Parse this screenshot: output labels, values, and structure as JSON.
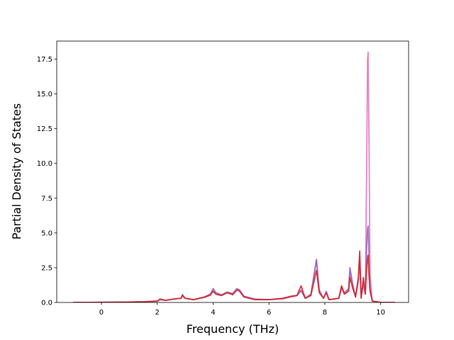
{
  "chart_data": {
    "type": "line",
    "title": "",
    "xlabel": "Frequency (THz)",
    "ylabel": "Partial Density of States",
    "xlim": [
      -1.6,
      11.0
    ],
    "ylim": [
      0,
      18.8
    ],
    "xticks": [
      "0",
      "2",
      "4",
      "6",
      "8",
      "10"
    ],
    "xtick_values": [
      0,
      2,
      4,
      6,
      8,
      10
    ],
    "yticks": [
      "0.0",
      "2.5",
      "5.0",
      "7.5",
      "10.0",
      "12.5",
      "15.0",
      "17.5"
    ],
    "ytick_values": [
      0,
      2.5,
      5,
      7.5,
      10,
      12.5,
      15,
      17.5
    ],
    "grid": false,
    "legend": "none",
    "series": [
      {
        "color": "#e377c2",
        "x": [
          -1.0,
          0.5,
          1.0,
          1.5,
          2.0,
          2.1,
          2.3,
          2.6,
          2.85,
          2.9,
          3.0,
          3.3,
          3.7,
          3.9,
          4.0,
          4.1,
          4.3,
          4.5,
          4.7,
          4.85,
          4.95,
          5.1,
          5.5,
          6.0,
          6.5,
          6.8,
          7.0,
          7.15,
          7.3,
          7.5,
          7.7,
          7.8,
          7.95,
          8.05,
          8.15,
          8.5,
          8.6,
          8.7,
          8.85,
          8.9,
          9.0,
          9.1,
          9.2,
          9.25,
          9.3,
          9.38,
          9.45,
          9.5,
          9.53,
          9.55,
          9.58,
          9.62,
          9.7,
          10.0,
          10.5
        ],
        "y": [
          0.0,
          0.02,
          0.03,
          0.05,
          0.1,
          0.2,
          0.15,
          0.25,
          0.3,
          0.45,
          0.3,
          0.2,
          0.35,
          0.5,
          0.9,
          0.6,
          0.5,
          0.7,
          0.6,
          0.9,
          0.85,
          0.4,
          0.2,
          0.2,
          0.25,
          0.4,
          0.5,
          0.8,
          0.3,
          0.5,
          3.0,
          0.8,
          0.3,
          0.7,
          0.2,
          0.3,
          1.0,
          0.6,
          0.9,
          2.2,
          1.2,
          0.4,
          1.5,
          3.0,
          0.4,
          1.2,
          0.6,
          10.0,
          17.5,
          18.0,
          12.0,
          2.0,
          0.1,
          0.0,
          0.0
        ]
      },
      {
        "color": "#9467bd",
        "x": [
          -1.0,
          0.5,
          1.0,
          1.5,
          2.0,
          2.1,
          2.3,
          2.6,
          2.85,
          2.9,
          3.0,
          3.3,
          3.7,
          3.9,
          4.0,
          4.1,
          4.3,
          4.5,
          4.7,
          4.85,
          4.95,
          5.1,
          5.5,
          6.0,
          6.5,
          6.8,
          7.0,
          7.15,
          7.3,
          7.5,
          7.7,
          7.8,
          7.95,
          8.05,
          8.15,
          8.5,
          8.6,
          8.7,
          8.85,
          8.9,
          9.0,
          9.1,
          9.2,
          9.25,
          9.3,
          9.38,
          9.45,
          9.5,
          9.53,
          9.55,
          9.58,
          9.62,
          9.7,
          10.0,
          10.5
        ],
        "y": [
          0.0,
          0.02,
          0.03,
          0.05,
          0.1,
          0.2,
          0.15,
          0.25,
          0.3,
          0.5,
          0.3,
          0.2,
          0.4,
          0.6,
          1.0,
          0.7,
          0.55,
          0.75,
          0.65,
          1.0,
          0.9,
          0.45,
          0.25,
          0.2,
          0.3,
          0.45,
          0.5,
          0.9,
          0.3,
          0.6,
          3.1,
          0.9,
          0.3,
          0.8,
          0.2,
          0.3,
          1.1,
          0.7,
          1.0,
          2.5,
          1.3,
          0.4,
          1.6,
          3.3,
          0.4,
          1.5,
          0.7,
          4.0,
          5.3,
          5.5,
          3.5,
          1.0,
          0.1,
          0.0,
          0.0
        ]
      },
      {
        "color": "#d62728",
        "x": [
          -1.0,
          0.5,
          1.0,
          1.5,
          2.0,
          2.1,
          2.3,
          2.6,
          2.85,
          2.9,
          3.0,
          3.3,
          3.7,
          3.9,
          4.0,
          4.1,
          4.3,
          4.5,
          4.7,
          4.85,
          4.95,
          5.1,
          5.5,
          6.0,
          6.5,
          6.8,
          7.0,
          7.15,
          7.3,
          7.5,
          7.7,
          7.8,
          7.95,
          8.05,
          8.15,
          8.5,
          8.6,
          8.7,
          8.85,
          8.9,
          9.0,
          9.1,
          9.2,
          9.25,
          9.3,
          9.38,
          9.45,
          9.5,
          9.53,
          9.55,
          9.58,
          9.62,
          9.7,
          10.0,
          10.5
        ],
        "y": [
          0.0,
          0.02,
          0.03,
          0.05,
          0.1,
          0.25,
          0.15,
          0.25,
          0.3,
          0.55,
          0.3,
          0.2,
          0.4,
          0.55,
          0.8,
          0.6,
          0.5,
          0.7,
          0.55,
          0.9,
          0.8,
          0.4,
          0.2,
          0.2,
          0.3,
          0.45,
          0.5,
          1.2,
          0.3,
          0.5,
          2.3,
          0.7,
          0.3,
          0.7,
          0.2,
          0.3,
          1.2,
          0.6,
          0.8,
          1.8,
          1.0,
          0.4,
          1.8,
          3.7,
          0.3,
          1.8,
          0.6,
          2.5,
          3.2,
          3.4,
          2.0,
          0.8,
          0.1,
          0.0,
          0.0
        ]
      }
    ]
  }
}
